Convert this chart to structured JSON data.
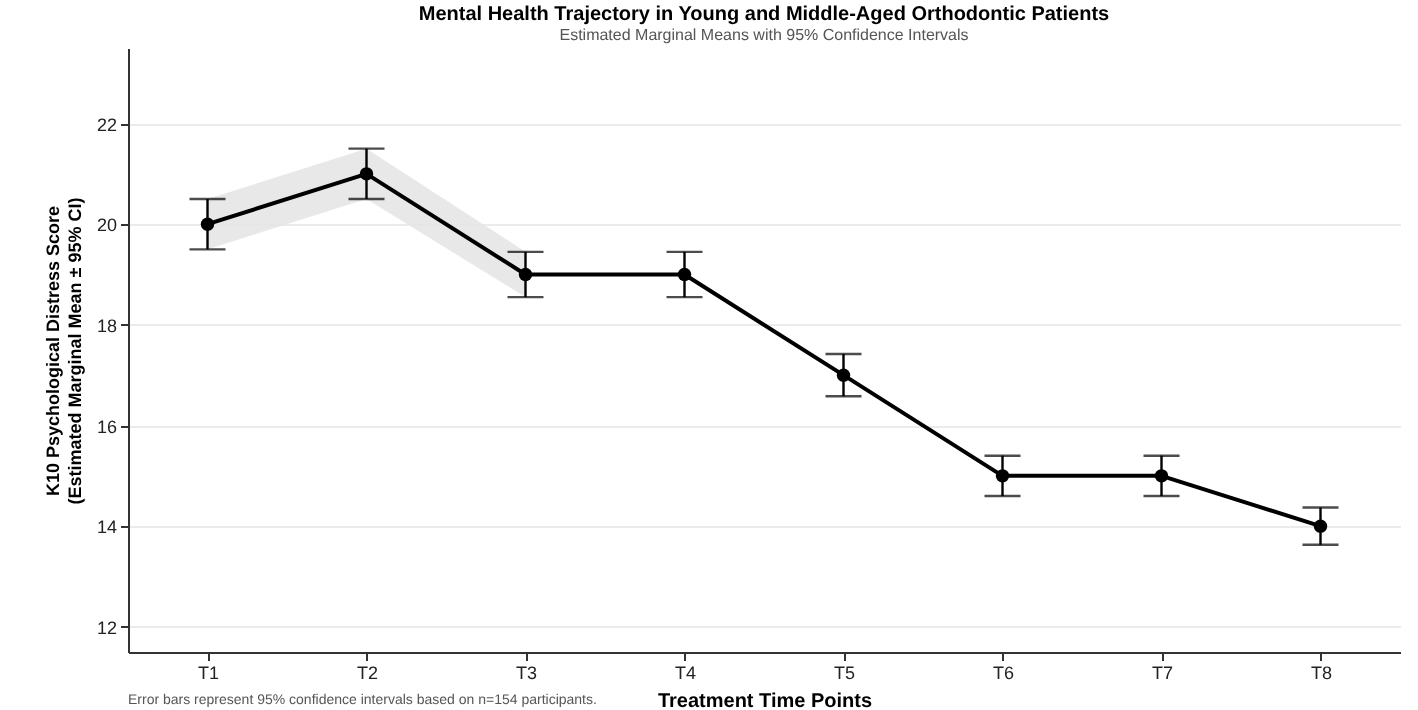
{
  "chart_data": {
    "type": "line",
    "title": "Mental Health Trajectory in Young and Middle-Aged Orthodontic Patients",
    "subtitle": "Estimated Marginal Means with 95% Confidence Intervals",
    "xlabel": "Treatment Time Points",
    "ylabel": "K10 Psychological Distress Score\n(Estimated Marginal Mean ± 95% CI)",
    "categories": [
      "T1",
      "T2",
      "T3",
      "T4",
      "T5",
      "T6",
      "T7",
      "T8"
    ],
    "series": [
      {
        "color": "#000000",
        "values": [
          20,
          21,
          19,
          19,
          17,
          15,
          15,
          14
        ],
        "errors": [
          0.5,
          0.5,
          0.45,
          0.45,
          0.42,
          0.4,
          0.4,
          0.37
        ],
        "lower": [
          19.5,
          20.5,
          18.55,
          null,
          null,
          null,
          null,
          null
        ],
        "upper": [
          20.5,
          21.5,
          19.45,
          null,
          null,
          null,
          null,
          null
        ]
      }
    ],
    "ylim": [
      11.5,
      23.5
    ],
    "yticks": [
      12,
      14,
      16,
      18,
      20,
      22
    ],
    "grid": "y",
    "marker": "circle",
    "line_style": "solid",
    "annotations": [
      "Error bars represent 95% confidence intervals based on n=154 participants."
    ]
  }
}
